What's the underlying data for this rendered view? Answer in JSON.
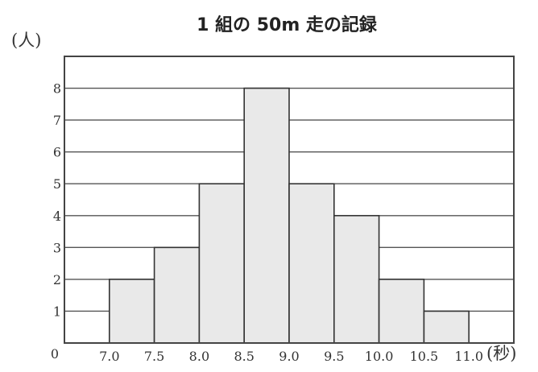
{
  "chart_data": {
    "type": "bar",
    "title": "1 組の 50m 走の記録",
    "ylabel": "(人)",
    "xlabel": "(秒)",
    "x_tick_labels": [
      "7.0",
      "7.5",
      "8.0",
      "8.5",
      "9.0",
      "9.5",
      "10.0",
      "10.5",
      "11.0"
    ],
    "y_tick_labels": [
      "0",
      "1",
      "2",
      "3",
      "4",
      "5",
      "6",
      "7",
      "8"
    ],
    "bins": [
      {
        "from": 7.0,
        "to": 7.5,
        "value": 2
      },
      {
        "from": 7.5,
        "to": 8.0,
        "value": 3
      },
      {
        "from": 8.0,
        "to": 8.5,
        "value": 5
      },
      {
        "from": 8.5,
        "to": 9.0,
        "value": 8
      },
      {
        "from": 9.0,
        "to": 9.5,
        "value": 5
      },
      {
        "from": 9.5,
        "to": 10.0,
        "value": 4
      },
      {
        "from": 10.0,
        "to": 10.5,
        "value": 2
      },
      {
        "from": 10.5,
        "to": 11.0,
        "value": 1
      }
    ],
    "xlim": [
      6.5,
      11.5
    ],
    "ylim": [
      0,
      9
    ],
    "grid": true,
    "colors": {
      "bar_fill": "#e9e9e9",
      "bar_stroke": "#333333",
      "grid": "#555555"
    }
  }
}
